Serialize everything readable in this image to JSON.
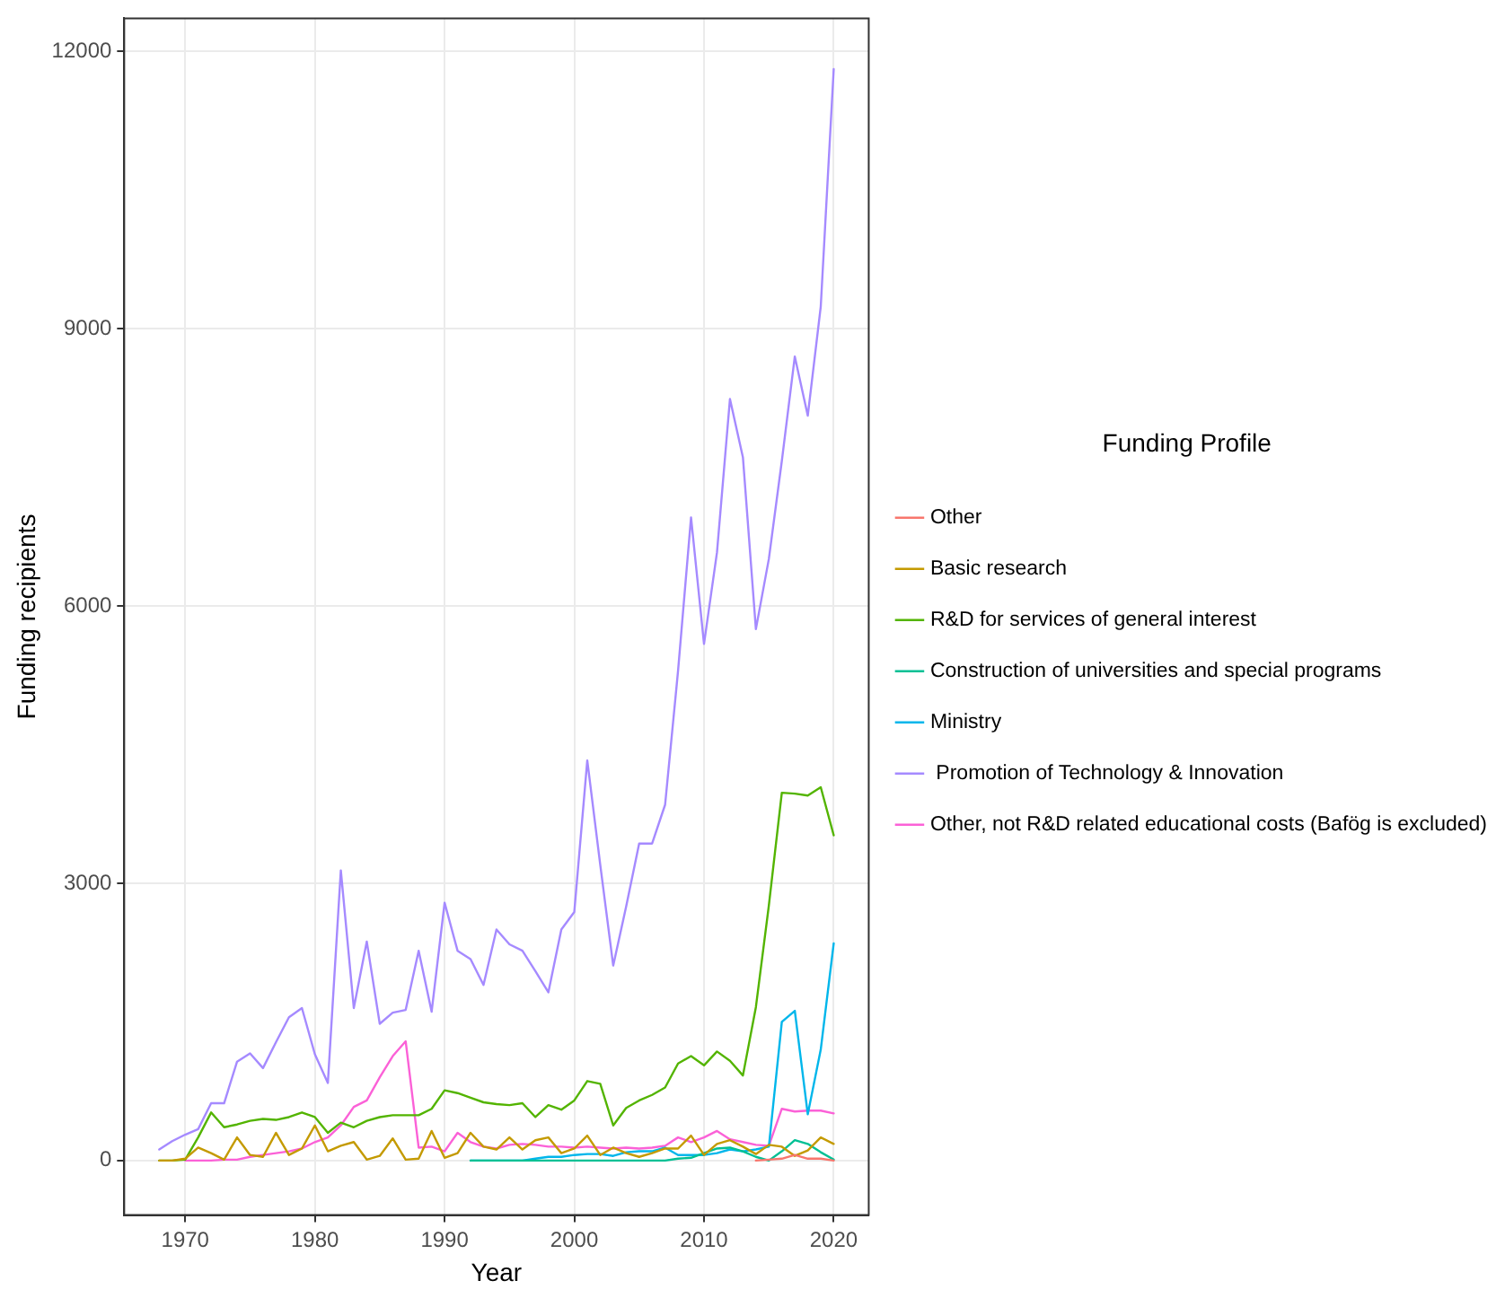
{
  "chart_data": {
    "type": "line",
    "xlabel": "Year",
    "ylabel": "Funding recipients",
    "legend_title": "Funding Profile",
    "legend": "right",
    "grid": true,
    "marker": "none",
    "line_style": "solid",
    "xlim": [
      1965.3,
      2022.7
    ],
    "xticks": [
      1970,
      1980,
      1990,
      2000,
      2010,
      2020
    ],
    "ylim": [
      -590,
      12360
    ],
    "yticks": [
      0,
      3000,
      6000,
      9000,
      12000
    ],
    "series": [
      {
        "name": "Other",
        "color": "#f8766d",
        "x": [
          2014,
          2015,
          2016,
          2017,
          2018,
          2019,
          2020
        ],
        "values": [
          0,
          10,
          20,
          60,
          20,
          20,
          0
        ]
      },
      {
        "name": "Basic research",
        "color": "#c49a00",
        "x": [
          1968,
          1969,
          1970,
          1971,
          1972,
          1973,
          1974,
          1975,
          1976,
          1977,
          1978,
          1979,
          1980,
          1981,
          1982,
          1983,
          1984,
          1985,
          1986,
          1987,
          1988,
          1989,
          1990,
          1991,
          1992,
          1993,
          1994,
          1995,
          1996,
          1997,
          1998,
          1999,
          2000,
          2001,
          2002,
          2003,
          2004,
          2005,
          2006,
          2007,
          2008,
          2009,
          2010,
          2011,
          2012,
          2013,
          2014,
          2015,
          2016,
          2017,
          2018,
          2019,
          2020
        ],
        "values": [
          0,
          0,
          20,
          140,
          80,
          10,
          250,
          60,
          40,
          300,
          60,
          130,
          380,
          100,
          160,
          200,
          10,
          50,
          240,
          10,
          20,
          320,
          30,
          80,
          300,
          150,
          120,
          250,
          120,
          220,
          250,
          80,
          130,
          270,
          60,
          140,
          80,
          40,
          80,
          130,
          130,
          270,
          60,
          180,
          220,
          150,
          70,
          170,
          150,
          50,
          110,
          250,
          180
        ]
      },
      {
        "name": "R&D for services of general interest",
        "color": "#53b400",
        "x": [
          1968,
          1969,
          1970,
          1971,
          1972,
          1973,
          1974,
          1975,
          1976,
          1977,
          1978,
          1979,
          1980,
          1981,
          1982,
          1983,
          1984,
          1985,
          1986,
          1987,
          1988,
          1989,
          1990,
          1991,
          1992,
          1993,
          1994,
          1995,
          1996,
          1997,
          1998,
          1999,
          2000,
          2001,
          2002,
          2003,
          2004,
          2005,
          2006,
          2007,
          2008,
          2009,
          2010,
          2011,
          2012,
          2013,
          2014,
          2015,
          2016,
          2017,
          2018,
          2019,
          2020
        ],
        "values": [
          0,
          0,
          10,
          250,
          520,
          360,
          390,
          430,
          450,
          440,
          470,
          520,
          470,
          300,
          410,
          360,
          430,
          470,
          490,
          490,
          490,
          560,
          760,
          730,
          680,
          630,
          610,
          600,
          620,
          470,
          600,
          550,
          650,
          860,
          830,
          380,
          570,
          650,
          710,
          790,
          1050,
          1130,
          1030,
          1180,
          1080,
          920,
          1660,
          2760,
          3980,
          3970,
          3950,
          4040,
          3520
        ]
      },
      {
        "name": "Construction of universities and special programs",
        "color": "#00c094",
        "x": [
          1992,
          1995,
          2000,
          2005,
          2007,
          2008,
          2009,
          2010,
          2011,
          2012,
          2013,
          2014,
          2015,
          2016,
          2017,
          2018,
          2019,
          2020
        ],
        "values": [
          0,
          0,
          0,
          0,
          0,
          20,
          30,
          80,
          130,
          140,
          100,
          40,
          0,
          100,
          220,
          180,
          90,
          10
        ]
      },
      {
        "name": "Ministry",
        "color": "#00b6eb",
        "x": [
          1992,
          1993,
          1994,
          1995,
          1996,
          1997,
          1998,
          1999,
          2000,
          2001,
          2002,
          2003,
          2004,
          2005,
          2006,
          2007,
          2008,
          2009,
          2010,
          2011,
          2012,
          2013,
          2014,
          2015,
          2016,
          2017,
          2018,
          2019,
          2020
        ],
        "values": [
          0,
          0,
          0,
          0,
          0,
          20,
          40,
          40,
          60,
          70,
          70,
          50,
          90,
          100,
          100,
          140,
          60,
          60,
          60,
          80,
          120,
          100,
          120,
          150,
          1500,
          1620,
          500,
          1200,
          2350
        ]
      },
      {
        "name": " Promotion of Technology & Innovation",
        "color": "#a58aff",
        "x": [
          1968,
          1969,
          1970,
          1971,
          1972,
          1973,
          1974,
          1975,
          1976,
          1977,
          1978,
          1979,
          1980,
          1981,
          1982,
          1983,
          1984,
          1985,
          1986,
          1987,
          1988,
          1989,
          1990,
          1991,
          1992,
          1993,
          1994,
          1995,
          1996,
          1997,
          1998,
          1999,
          2000,
          2001,
          2002,
          2003,
          2004,
          2005,
          2006,
          2007,
          2008,
          2009,
          2010,
          2011,
          2012,
          2013,
          2014,
          2015,
          2016,
          2017,
          2018,
          2019,
          2020
        ],
        "values": [
          120,
          210,
          280,
          340,
          620,
          620,
          1070,
          1160,
          1000,
          1280,
          1550,
          1650,
          1150,
          840,
          3140,
          1650,
          2370,
          1480,
          1600,
          1630,
          2270,
          1610,
          2790,
          2270,
          2180,
          1900,
          2500,
          2340,
          2270,
          2050,
          1820,
          2500,
          2690,
          4330,
          3200,
          2110,
          2750,
          3430,
          3430,
          3850,
          5300,
          6960,
          5590,
          6580,
          8240,
          7610,
          5750,
          6510,
          7570,
          8700,
          8060,
          9240,
          11810
        ]
      },
      {
        "name": "Other, not R&D related educational costs (Bafög is excluded)",
        "color": "#fb61d7",
        "x": [
          1970,
          1971,
          1972,
          1973,
          1974,
          1975,
          1976,
          1977,
          1978,
          1979,
          1980,
          1981,
          1982,
          1983,
          1984,
          1985,
          1986,
          1987,
          1988,
          1989,
          1990,
          1991,
          1992,
          1993,
          1994,
          1995,
          1996,
          1997,
          1998,
          1999,
          2000,
          2001,
          2002,
          2003,
          2004,
          2005,
          2006,
          2007,
          2008,
          2009,
          2010,
          2011,
          2012,
          2013,
          2014,
          2015,
          2016,
          2017,
          2018,
          2019,
          2020
        ],
        "values": [
          0,
          0,
          0,
          10,
          10,
          40,
          60,
          80,
          100,
          130,
          200,
          250,
          380,
          580,
          650,
          900,
          1130,
          1290,
          140,
          150,
          100,
          300,
          200,
          150,
          130,
          170,
          180,
          170,
          150,
          150,
          140,
          150,
          140,
          130,
          140,
          130,
          140,
          160,
          250,
          200,
          250,
          320,
          230,
          200,
          170,
          160,
          560,
          530,
          540,
          540,
          510
        ]
      }
    ]
  }
}
